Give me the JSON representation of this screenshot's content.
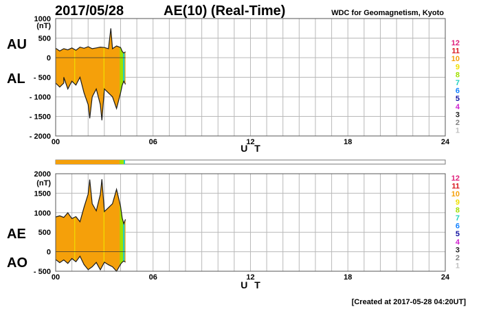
{
  "header": {
    "date": "2017/05/28",
    "title": "AE(10) (Real-Time)",
    "source": "WDC for Geomagnetism, Kyoto",
    "created": "[Created at 2017-05-28 04:20UT]"
  },
  "legend": {
    "labels": [
      "12",
      "11",
      "10",
      "9",
      "8",
      "7",
      "6",
      "5",
      "4",
      "3",
      "2",
      "1"
    ],
    "colors": [
      "#e0207a",
      "#d8141c",
      "#f5a00a",
      "#f0e000",
      "#a0e000",
      "#20d0c0",
      "#1080ff",
      "#1010a0",
      "#d020d0",
      "#202020",
      "#808080",
      "#c0c0c0"
    ]
  },
  "chart_data": [
    {
      "type": "area",
      "panel": "top",
      "series": [
        {
          "name": "AU",
          "x": [
            0.0,
            0.25,
            0.5,
            0.75,
            1.0,
            1.25,
            1.5,
            1.75,
            2.0,
            2.25,
            2.5,
            2.75,
            3.0,
            3.25,
            3.4,
            3.5,
            3.75,
            4.0,
            4.1,
            4.2,
            4.3
          ],
          "values": [
            240,
            170,
            230,
            200,
            250,
            190,
            270,
            240,
            280,
            230,
            250,
            270,
            260,
            230,
            750,
            230,
            300,
            260,
            160,
            120,
            150
          ]
        },
        {
          "name": "AL",
          "x": [
            0.0,
            0.25,
            0.5,
            0.5,
            0.75,
            1.0,
            1.25,
            1.5,
            1.75,
            2.0,
            2.1,
            2.25,
            2.5,
            2.75,
            2.85,
            3.0,
            3.25,
            3.5,
            3.75,
            4.0,
            4.1,
            4.2,
            4.3
          ],
          "values": [
            -650,
            -750,
            -650,
            -500,
            -800,
            -600,
            -700,
            -500,
            -900,
            -1200,
            -1550,
            -1000,
            -800,
            -1200,
            -1600,
            -800,
            -900,
            -1000,
            -1300,
            -900,
            -700,
            -600,
            -680
          ]
        }
      ],
      "xlabel": "U T",
      "xticks": [
        "00",
        "06",
        "12",
        "18",
        "24"
      ],
      "xlim": [
        0,
        24
      ],
      "ylabel": "(nT)",
      "yticks": [
        "1000",
        "500",
        "0",
        "- 500",
        "- 1000",
        "- 1500",
        "- 2000"
      ],
      "ylim": [
        -2000,
        1000
      ],
      "grid": true
    },
    {
      "type": "area",
      "panel": "bottom",
      "series": [
        {
          "name": "AE",
          "x": [
            0.0,
            0.25,
            0.5,
            0.75,
            1.0,
            1.25,
            1.5,
            1.75,
            2.0,
            2.1,
            2.25,
            2.5,
            2.75,
            2.85,
            3.0,
            3.25,
            3.5,
            3.75,
            4.0,
            4.1,
            4.2,
            4.3
          ],
          "values": [
            890,
            920,
            880,
            1000,
            850,
            900,
            770,
            1140,
            1480,
            1850,
            1230,
            1050,
            1470,
            1860,
            1030,
            1130,
            1230,
            1600,
            1160,
            860,
            720,
            830
          ]
        },
        {
          "name": "AO",
          "x": [
            0.0,
            0.25,
            0.5,
            0.75,
            1.0,
            1.25,
            1.5,
            1.75,
            2.0,
            2.25,
            2.5,
            2.75,
            3.0,
            3.25,
            3.5,
            3.75,
            4.0,
            4.1,
            4.2,
            4.3
          ],
          "values": [
            -200,
            -280,
            -210,
            -300,
            -175,
            -255,
            -115,
            -330,
            -460,
            -385,
            -275,
            -465,
            -270,
            -335,
            -385,
            -500,
            -320,
            -270,
            -240,
            -265
          ]
        }
      ],
      "xlabel": "U T",
      "xticks": [
        "00",
        "06",
        "12",
        "18",
        "24"
      ],
      "xlim": [
        0,
        24
      ],
      "ylabel": "(nT)",
      "yticks": [
        "2000",
        "1500",
        "1000",
        "500",
        "0",
        "- 500"
      ],
      "ylim": [
        -500,
        2000
      ],
      "grid": true
    }
  ]
}
